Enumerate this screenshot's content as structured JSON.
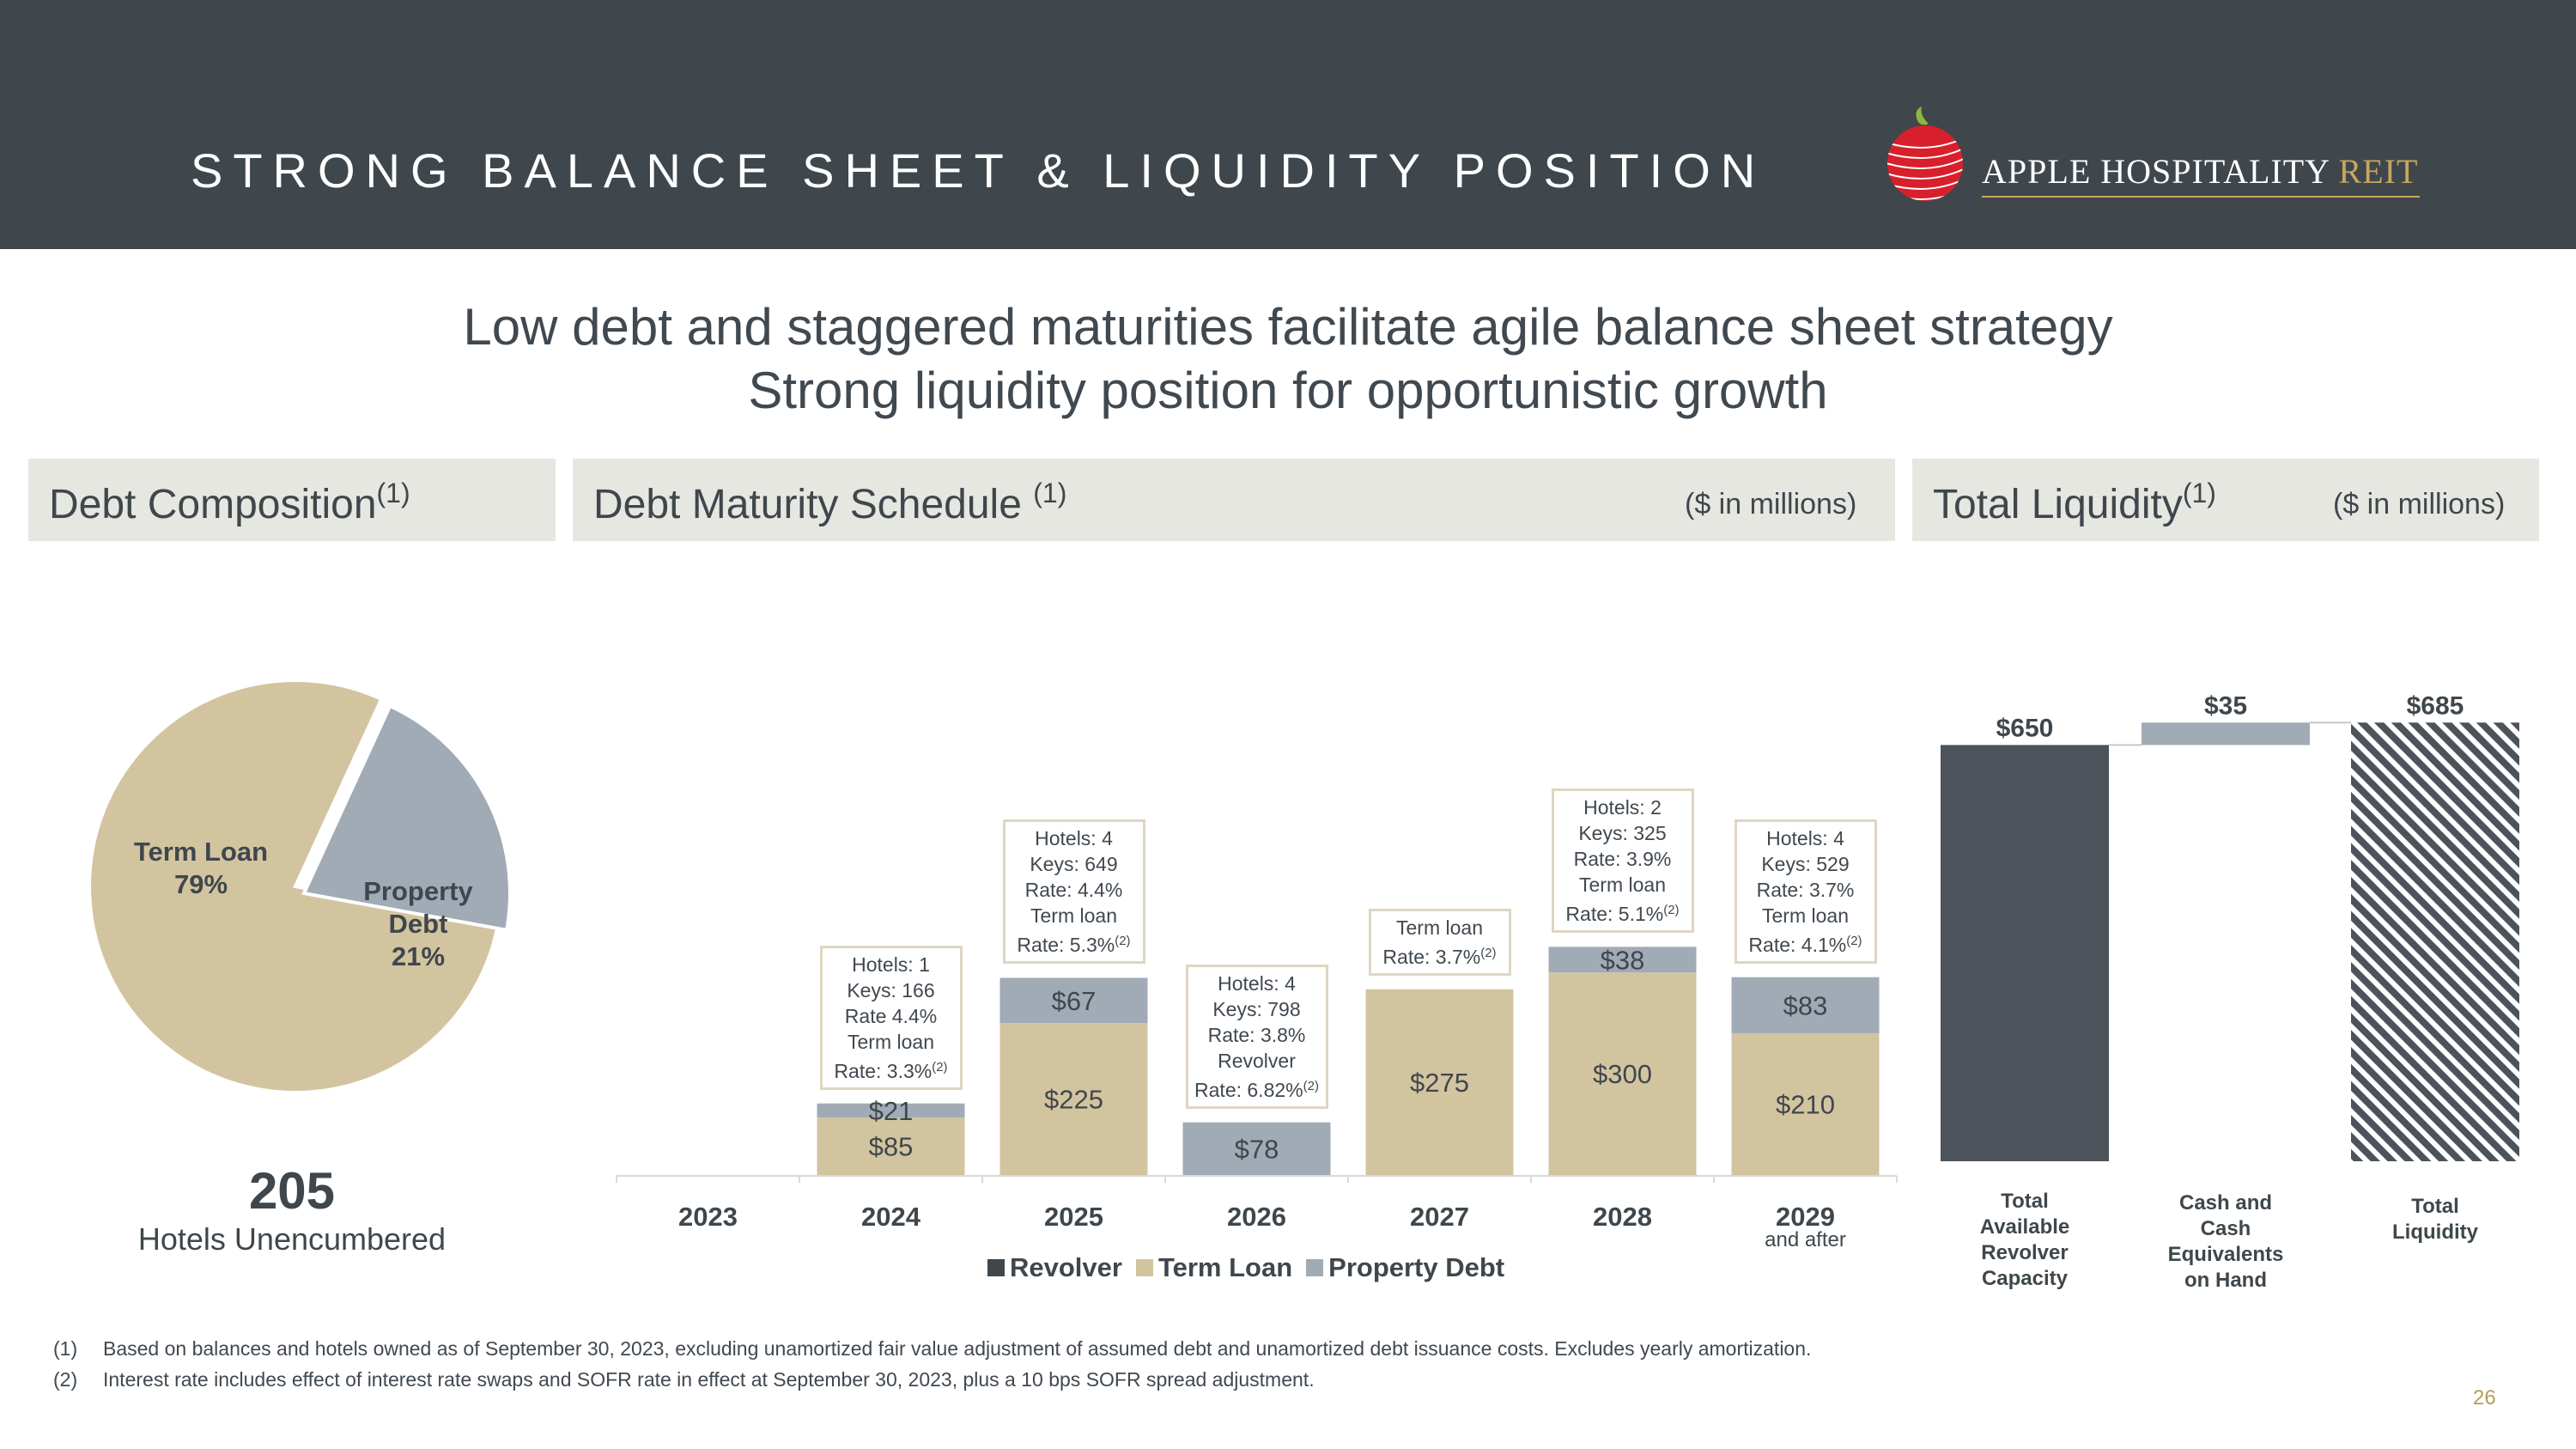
{
  "header": {
    "title": "STRONG BALANCE SHEET & LIQUIDITY POSITION",
    "logo_main": "APPLE HOSPITALITY ",
    "logo_accent": "REIT"
  },
  "headline": {
    "line1": "Low debt and staggered maturities facilitate agile balance sheet strategy",
    "line2": "Strong liquidity position for opportunistic growth"
  },
  "panels": {
    "composition": {
      "title": "Debt Composition",
      "sup": "(1)"
    },
    "maturity": {
      "title": "Debt Maturity Schedule ",
      "sup": "(1)",
      "unit": "($ in millions)"
    },
    "liquidity": {
      "title": "Total Liquidity",
      "sup": "(1)",
      "unit": "($ in millions)"
    }
  },
  "colors": {
    "revolver": "#3f474c",
    "term_loan": "#d3c4a0",
    "property_debt": "#a1abb6",
    "liquidity_bar": "#4c535b",
    "hatch": "#4c535b"
  },
  "unencumbered": {
    "count": "205",
    "label": "Hotels Unencumbered"
  },
  "maturity_notes": [
    {
      "year": "2024",
      "lines": [
        "Hotels: 1",
        "Keys: 166",
        "Rate 4.4%",
        "Term loan",
        "Rate: 3.3%"
      ],
      "sup": "(2)"
    },
    {
      "year": "2025",
      "lines": [
        "Hotels: 4",
        "Keys: 649",
        "Rate: 4.4%",
        "Term loan",
        "Rate: 5.3%"
      ],
      "sup": "(2)"
    },
    {
      "year": "2026",
      "lines": [
        "Hotels: 4",
        "Keys: 798",
        "Rate: 3.8%",
        "Revolver",
        "Rate: 6.82%"
      ],
      "sup": "(2)"
    },
    {
      "year": "2027",
      "lines": [
        "Term loan",
        "Rate: 3.7%"
      ],
      "sup": "(2)"
    },
    {
      "year": "2028",
      "lines": [
        "Hotels: 2",
        "Keys: 325",
        "Rate: 3.9%",
        "Term loan",
        "Rate: 5.1%"
      ],
      "sup": "(2)"
    },
    {
      "year": "2029",
      "lines": [
        "Hotels: 4",
        "Keys: 529",
        "Rate: 3.7%",
        "Term loan",
        "Rate: 4.1%"
      ],
      "sup": "(2)"
    }
  ],
  "liquidity_labels": {
    "revolver": [
      "Total",
      "Available",
      "Revolver",
      "Capacity"
    ],
    "cash": [
      "Cash and",
      "Cash",
      "Equivalents",
      "on Hand"
    ],
    "total": [
      "Total",
      "Liquidity"
    ]
  },
  "footnotes": [
    {
      "num": "(1)",
      "text": "Based on balances and hotels owned as of September 30, 2023, excluding unamortized fair value adjustment of assumed debt and unamortized debt issuance costs. Excludes yearly amortization."
    },
    {
      "num": "(2)",
      "text": "Interest rate includes effect of interest rate swaps and SOFR rate in effect at September 30, 2023, plus a 10 bps SOFR spread adjustment."
    }
  ],
  "page_number": "26",
  "chart_data": [
    {
      "type": "pie",
      "title": "Debt Composition",
      "slices": [
        {
          "name": "Term Loan",
          "value": 79,
          "label": "79%"
        },
        {
          "name": "Property Debt",
          "value": 21,
          "label": "21%"
        }
      ]
    },
    {
      "type": "bar",
      "stacked": true,
      "title": "Debt Maturity Schedule",
      "unit": "($ in millions)",
      "categories": [
        "2023",
        "2024",
        "2025",
        "2026",
        "2027",
        "2028",
        "2029"
      ],
      "category_sublabels": [
        "",
        "",
        "",
        "",
        "",
        "",
        "and after"
      ],
      "ylim": [
        0,
        420
      ],
      "series": [
        {
          "name": "Revolver",
          "values": [
            0,
            0,
            0,
            0,
            0,
            0,
            0
          ],
          "labels": [
            "",
            "",
            "",
            "",
            "",
            "",
            ""
          ]
        },
        {
          "name": "Term Loan",
          "values": [
            0,
            85,
            225,
            0,
            275,
            300,
            210
          ],
          "labels": [
            "",
            "$85",
            "$225",
            "",
            "$275",
            "$300",
            "$210"
          ]
        },
        {
          "name": "Property Debt",
          "values": [
            0,
            21,
            67,
            78,
            0,
            38,
            83
          ],
          "labels": [
            "",
            "$21",
            "$67",
            "$78",
            "",
            "$38",
            "$83"
          ]
        }
      ],
      "legend": [
        "Revolver",
        "Term Loan",
        "Property Debt"
      ]
    },
    {
      "type": "bar",
      "variant": "waterfall",
      "title": "Total Liquidity",
      "unit": "($ in millions)",
      "categories": [
        "Total Available Revolver Capacity",
        "Cash and Cash Equivalents on Hand",
        "Total Liquidity"
      ],
      "values": [
        650,
        35,
        685
      ],
      "labels": [
        "$650",
        "$35",
        "$685"
      ],
      "ylim": [
        0,
        685
      ]
    }
  ]
}
